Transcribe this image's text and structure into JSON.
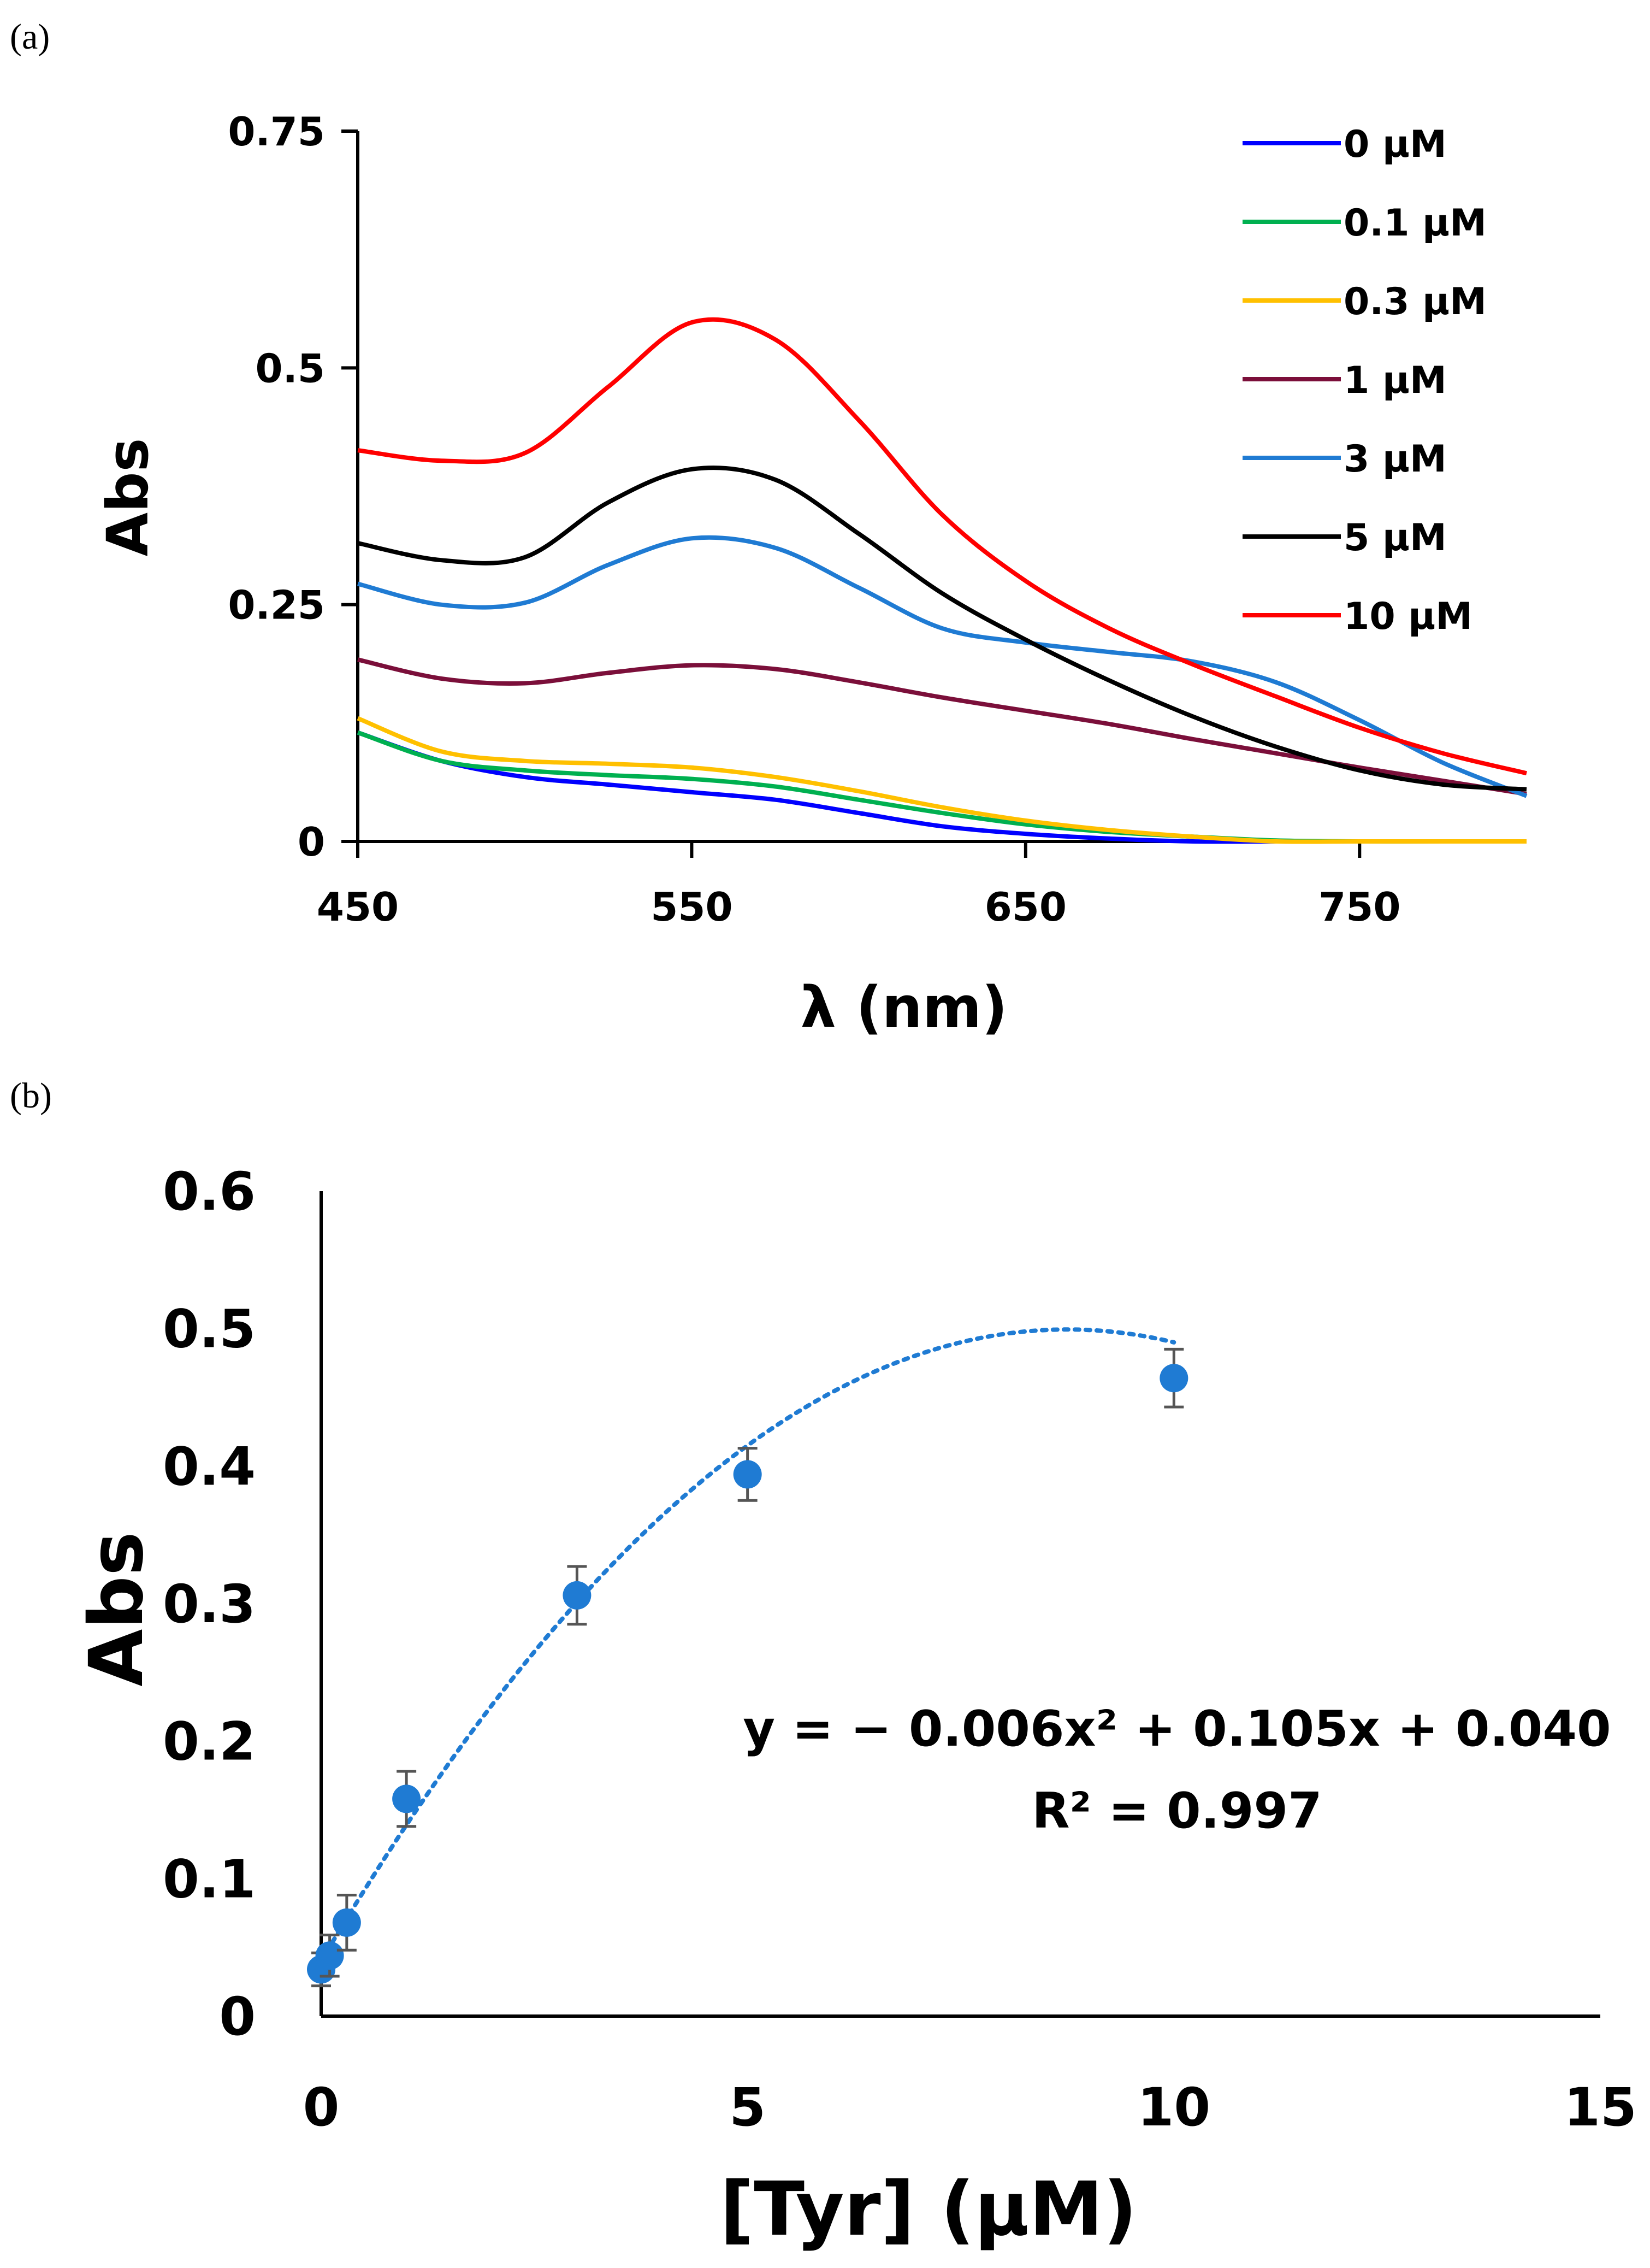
{
  "panels": {
    "a_label": "(a)",
    "b_label": "(b)"
  },
  "chart_data": [
    {
      "type": "line",
      "panel": "(a)",
      "xlabel": "λ (nm)",
      "ylabel": "Abs",
      "xlim": [
        450,
        800
      ],
      "ylim": [
        0,
        0.75
      ],
      "xticks": [
        "450",
        "550",
        "650",
        "750"
      ],
      "yticks": [
        "0",
        "0.25",
        "0.5",
        "0.75"
      ],
      "legend_position": "top-right",
      "grid": false,
      "x": [
        450,
        475,
        500,
        525,
        550,
        575,
        600,
        625,
        650,
        675,
        700,
        725,
        750,
        775,
        800
      ],
      "series": [
        {
          "name": "0 μM",
          "color": "#0000ff",
          "values": [
            0.115,
            0.085,
            0.068,
            0.06,
            0.052,
            0.044,
            0.03,
            0.016,
            0.008,
            0.003,
            0.0,
            -0.002,
            -0.004,
            -0.006,
            -0.008
          ]
        },
        {
          "name": "0.1 μM",
          "color": "#00b050",
          "values": [
            0.115,
            0.085,
            0.075,
            0.07,
            0.066,
            0.058,
            0.044,
            0.03,
            0.018,
            0.01,
            0.005,
            0.001,
            -0.002,
            -0.004,
            -0.006
          ]
        },
        {
          "name": "0.3 μM",
          "color": "#ffc000",
          "values": [
            0.13,
            0.095,
            0.085,
            0.082,
            0.078,
            0.068,
            0.053,
            0.036,
            0.022,
            0.012,
            0.005,
            0.0,
            -0.003,
            -0.005,
            -0.007
          ]
        },
        {
          "name": "1 μM",
          "color": "#7b0f3a",
          "values": [
            0.192,
            0.172,
            0.167,
            0.178,
            0.186,
            0.182,
            0.168,
            0.152,
            0.138,
            0.124,
            0.108,
            0.093,
            0.078,
            0.064,
            0.05
          ]
        },
        {
          "name": "3 μM",
          "color": "#1f7bd3",
          "values": [
            0.272,
            0.25,
            0.252,
            0.292,
            0.32,
            0.31,
            0.268,
            0.225,
            0.21,
            0.2,
            0.19,
            0.168,
            0.128,
            0.083,
            0.048
          ]
        },
        {
          "name": "5 μM",
          "color": "#000000",
          "values": [
            0.315,
            0.297,
            0.3,
            0.358,
            0.393,
            0.382,
            0.325,
            0.262,
            0.213,
            0.17,
            0.132,
            0.1,
            0.075,
            0.06,
            0.055
          ]
        },
        {
          "name": "10 μM",
          "color": "#ff0000",
          "values": [
            0.413,
            0.402,
            0.41,
            0.48,
            0.548,
            0.53,
            0.445,
            0.345,
            0.275,
            0.225,
            0.187,
            0.153,
            0.12,
            0.093,
            0.072
          ]
        }
      ]
    },
    {
      "type": "scatter",
      "panel": "(b)",
      "xlabel": "[Tyr] (μM)",
      "ylabel": "Abs",
      "xlim": [
        0,
        15
      ],
      "ylim": [
        0,
        0.6
      ],
      "xticks": [
        "0",
        "5",
        "10",
        "15"
      ],
      "yticks": [
        "0",
        "0.1",
        "0.2",
        "0.3",
        "0.4",
        "0.5",
        "0.6"
      ],
      "grid": false,
      "marker_color": "#1f7bd3",
      "points": [
        {
          "x": 0,
          "y": 0.034,
          "err": 0.012
        },
        {
          "x": 0.1,
          "y": 0.044,
          "err": 0.015
        },
        {
          "x": 0.3,
          "y": 0.068,
          "err": 0.02
        },
        {
          "x": 1,
          "y": 0.158,
          "err": 0.02
        },
        {
          "x": 3,
          "y": 0.306,
          "err": 0.021
        },
        {
          "x": 5,
          "y": 0.394,
          "err": 0.019
        },
        {
          "x": 10,
          "y": 0.464,
          "err": 0.021
        }
      ],
      "trendline": {
        "type": "polynomial",
        "a": -0.006,
        "b": 0.105,
        "c": 0.04,
        "x_range": [
          0,
          10
        ],
        "style": "dotted"
      },
      "equation": "y = − 0.006x² + 0.105x + 0.040",
      "r2": "R² = 0.997"
    }
  ]
}
